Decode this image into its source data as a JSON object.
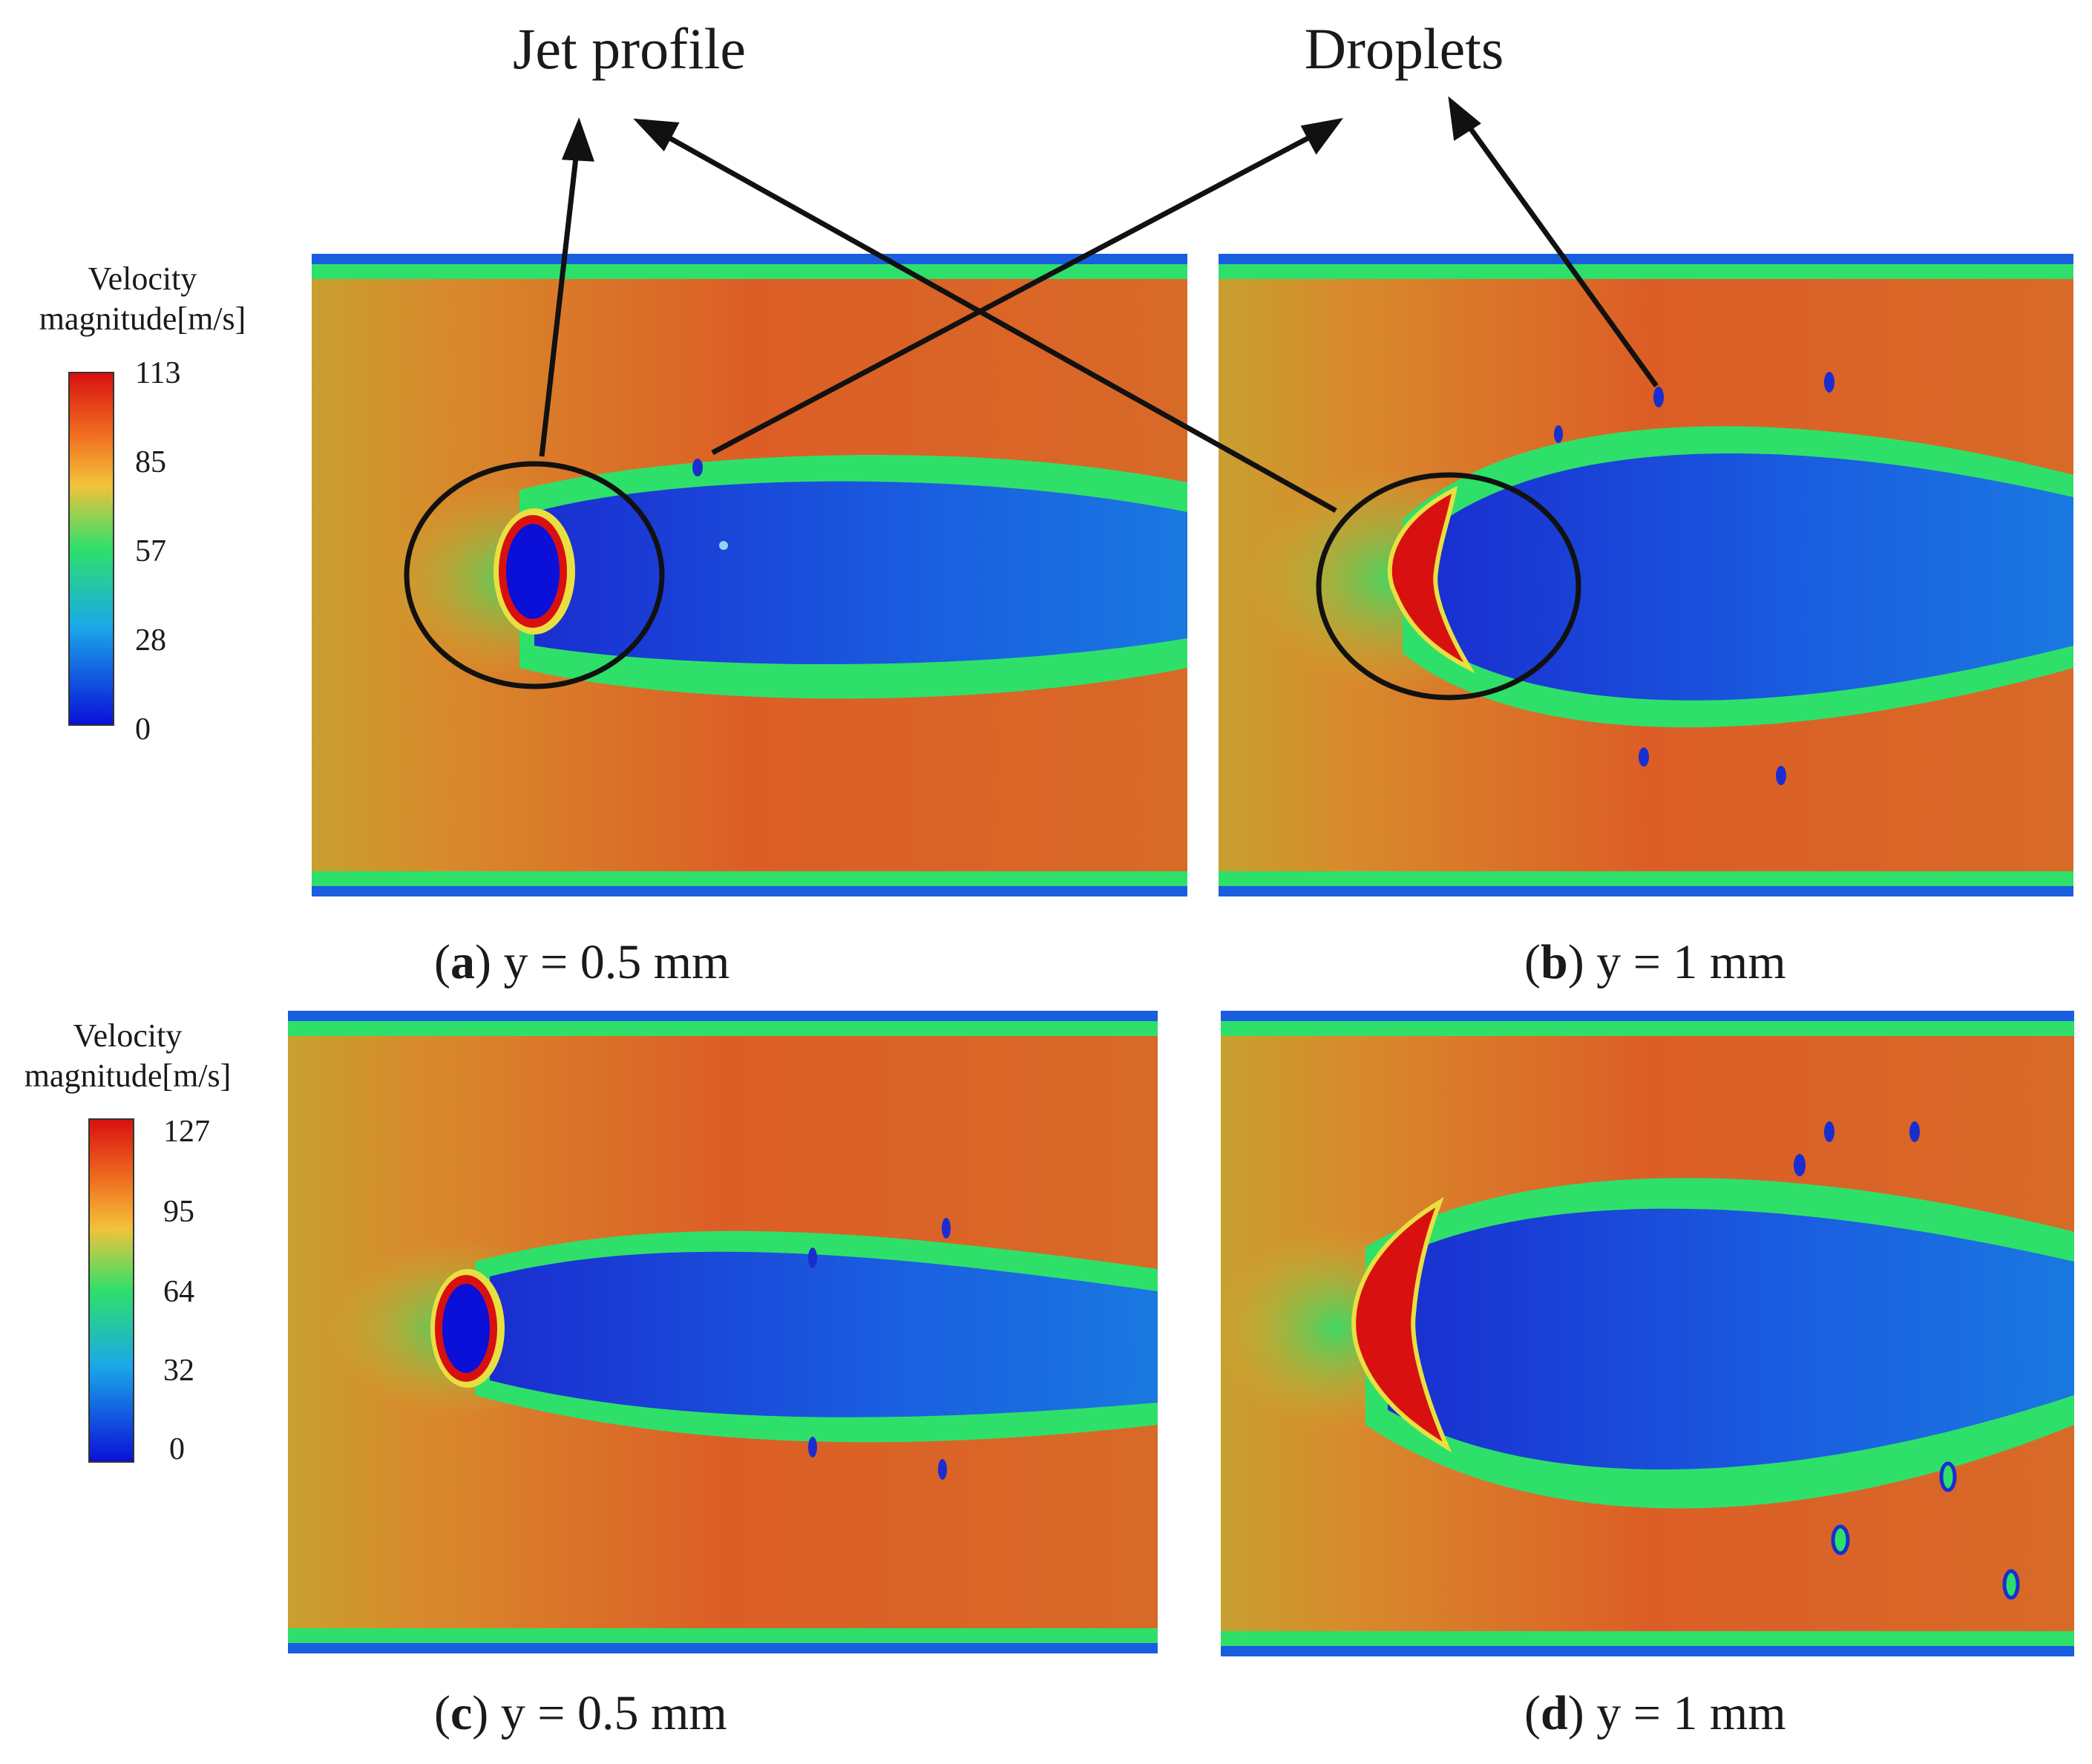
{
  "annotations": {
    "jet_profile": "Jet profile",
    "droplets": "Droplets"
  },
  "colorbars": [
    {
      "title_line1": "Velocity",
      "title_line2": "magnitude[m/s]",
      "ticks": [
        "113",
        "85",
        "57",
        "28",
        "0"
      ]
    },
    {
      "title_line1": "Velocity",
      "title_line2": "magnitude[m/s]",
      "ticks": [
        "127",
        "95",
        "64",
        "32",
        "0"
      ]
    }
  ],
  "panels": [
    {
      "letter": "a",
      "label": " y = 0.5 mm"
    },
    {
      "letter": "b",
      "label": " y = 1 mm"
    },
    {
      "letter": "c",
      "label": " y = 0.5 mm"
    },
    {
      "letter": "d",
      "label": " y = 1 mm"
    }
  ],
  "colormap": [
    "#0a10d8",
    "#1aa8e8",
    "#2ee06a",
    "#f2c23a",
    "#e8401a",
    "#d81010"
  ],
  "colors": {
    "background_flow": "#d86a28",
    "core_flow": "#e05828",
    "edge_flow": "#c8a030",
    "wake": "#1a3ed0",
    "outline": "#111111"
  }
}
